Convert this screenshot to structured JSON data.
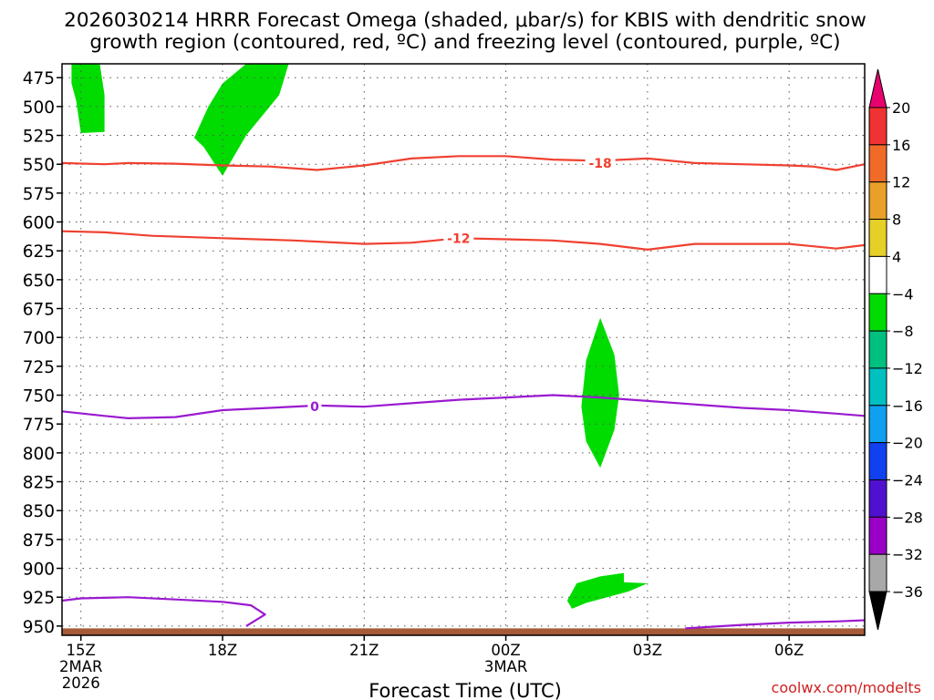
{
  "title_line1": "2026030214 HRRR Forecast Omega (shaded, μbar/s) for KBIS with dendritic snow",
  "title_line2": "growth region (contoured, red, ºC) and freezing level (contoured, purple, ºC)",
  "watermark": "coolwx.com/modelts",
  "chart_data": {
    "type": "time-height cross section",
    "xlabel": "Forecast Time (UTC)",
    "ylabel": "",
    "x_range_hours": [
      14.6,
      31.6
    ],
    "ylim": [
      463,
      958
    ],
    "y_direction": "pressure (mb), increasing downward",
    "yticks": [
      475,
      500,
      525,
      550,
      575,
      600,
      625,
      650,
      675,
      700,
      725,
      750,
      775,
      800,
      825,
      850,
      875,
      900,
      925,
      950
    ],
    "xticks": [
      {
        "hour": 15,
        "lines": [
          "15Z",
          "2MAR",
          "2026"
        ]
      },
      {
        "hour": 18,
        "lines": [
          "18Z"
        ]
      },
      {
        "hour": 21,
        "lines": [
          "21Z"
        ]
      },
      {
        "hour": 24,
        "lines": [
          "00Z",
          "3MAR"
        ]
      },
      {
        "hour": 27,
        "lines": [
          "03Z"
        ]
      },
      {
        "hour": 30,
        "lines": [
          "06Z"
        ]
      }
    ],
    "grid": true,
    "contours": [
      {
        "label": "-18",
        "color": "#f04030",
        "label_at": [
          26.0,
          549
        ],
        "points": [
          [
            14.6,
            549
          ],
          [
            15.5,
            550
          ],
          [
            16,
            549
          ],
          [
            17,
            549.5
          ],
          [
            18,
            551
          ],
          [
            19,
            552
          ],
          [
            20,
            555
          ],
          [
            21,
            551
          ],
          [
            22,
            545
          ],
          [
            23,
            543
          ],
          [
            24,
            543
          ],
          [
            25,
            546
          ],
          [
            26,
            547
          ],
          [
            27,
            545
          ],
          [
            28,
            549
          ],
          [
            29,
            550
          ],
          [
            30,
            551
          ],
          [
            30.5,
            552
          ],
          [
            31,
            555
          ],
          [
            31.6,
            550
          ]
        ]
      },
      {
        "label": "-12",
        "color": "#f04030",
        "label_at": [
          23.0,
          614
        ],
        "points": [
          [
            14.6,
            608
          ],
          [
            15.5,
            609
          ],
          [
            16.5,
            612
          ],
          [
            18,
            614
          ],
          [
            19.5,
            616
          ],
          [
            21,
            619
          ],
          [
            22,
            618
          ],
          [
            23,
            614
          ],
          [
            24,
            615
          ],
          [
            25,
            616
          ],
          [
            26,
            619
          ],
          [
            27,
            624
          ],
          [
            28,
            619
          ],
          [
            29,
            619
          ],
          [
            30,
            619
          ],
          [
            31,
            623
          ],
          [
            31.6,
            620
          ]
        ]
      },
      {
        "label": "0",
        "color": "#9a1ad0",
        "label_at": [
          19.95,
          760
        ],
        "points": [
          [
            14.6,
            764
          ],
          [
            15.5,
            768
          ],
          [
            16,
            770
          ],
          [
            17,
            769
          ],
          [
            18,
            763
          ],
          [
            19,
            761
          ],
          [
            20,
            759
          ],
          [
            21,
            760
          ],
          [
            22,
            757
          ],
          [
            23,
            754
          ],
          [
            24,
            752
          ],
          [
            25,
            750
          ],
          [
            26,
            752
          ],
          [
            27,
            755
          ],
          [
            28,
            758
          ],
          [
            29,
            761
          ],
          [
            30,
            763
          ],
          [
            31,
            766
          ],
          [
            31.6,
            768
          ]
        ]
      },
      {
        "label": "",
        "color": "#9a1ad0",
        "points": [
          [
            14.6,
            928
          ],
          [
            15,
            926
          ],
          [
            16,
            925
          ],
          [
            17,
            927
          ],
          [
            18,
            929
          ],
          [
            18.6,
            932
          ],
          [
            18.9,
            940
          ],
          [
            18.5,
            950
          ]
        ]
      },
      {
        "label": "",
        "color": "#9a1ad0",
        "points": [
          [
            27.8,
            952
          ],
          [
            29,
            949
          ],
          [
            30,
            947
          ],
          [
            31,
            946
          ],
          [
            31.6,
            945
          ]
        ]
      }
    ],
    "omega_regions": [
      {
        "range": "-8 to -4",
        "color": "#00dc00",
        "points": [
          [
            14.8,
            463
          ],
          [
            15.4,
            463
          ],
          [
            15.5,
            490
          ],
          [
            15.5,
            522
          ],
          [
            15.0,
            523
          ],
          [
            14.9,
            495
          ],
          [
            14.8,
            480
          ]
        ]
      },
      {
        "range": "-8 to -4",
        "color": "#00dc00",
        "points": [
          [
            18.5,
            463
          ],
          [
            19.4,
            463
          ],
          [
            19.2,
            490
          ],
          [
            18.9,
            505
          ],
          [
            18.5,
            525
          ],
          [
            18.0,
            560
          ],
          [
            17.6,
            535
          ],
          [
            17.4,
            527
          ],
          [
            17.7,
            500
          ],
          [
            18.0,
            480
          ]
        ]
      },
      {
        "range": "-8 to -4",
        "color": "#00dc00",
        "points": [
          [
            26.0,
            683
          ],
          [
            26.3,
            715
          ],
          [
            26.4,
            750
          ],
          [
            26.3,
            780
          ],
          [
            26.0,
            813
          ],
          [
            25.7,
            790
          ],
          [
            25.6,
            760
          ],
          [
            25.7,
            720
          ]
        ]
      },
      {
        "range": "-8 to -4",
        "color": "#00dc00",
        "points": [
          [
            25.5,
            913
          ],
          [
            26.0,
            907
          ],
          [
            26.5,
            904
          ],
          [
            26.5,
            912
          ],
          [
            27.0,
            913
          ],
          [
            26.6,
            920
          ],
          [
            25.7,
            930
          ],
          [
            25.4,
            935
          ],
          [
            25.3,
            928
          ]
        ]
      }
    ],
    "ground_band": {
      "top_mb": 952,
      "color": "#a55a38"
    },
    "colorbar": {
      "levels": [
        20,
        16,
        12,
        8,
        4,
        -4,
        -8,
        -12,
        -16,
        -20,
        -24,
        -28,
        -32,
        -36
      ],
      "labels": [
        "20",
        "16",
        "12",
        "8",
        "4",
        "−4",
        "−8",
        "−12",
        "−16",
        "−20",
        "−24",
        "−28",
        "−32",
        "−36"
      ],
      "top_color": "#e8006e",
      "bottom_color": "#000000",
      "colors": [
        "#f03232",
        "#f06a28",
        "#e8a028",
        "#e6d028",
        "#ffffff",
        "#00dc00",
        "#00c080",
        "#00c0c0",
        "#10a0f0",
        "#1040f0",
        "#5010d0",
        "#9a00c8",
        "#a8a8a8"
      ]
    }
  }
}
